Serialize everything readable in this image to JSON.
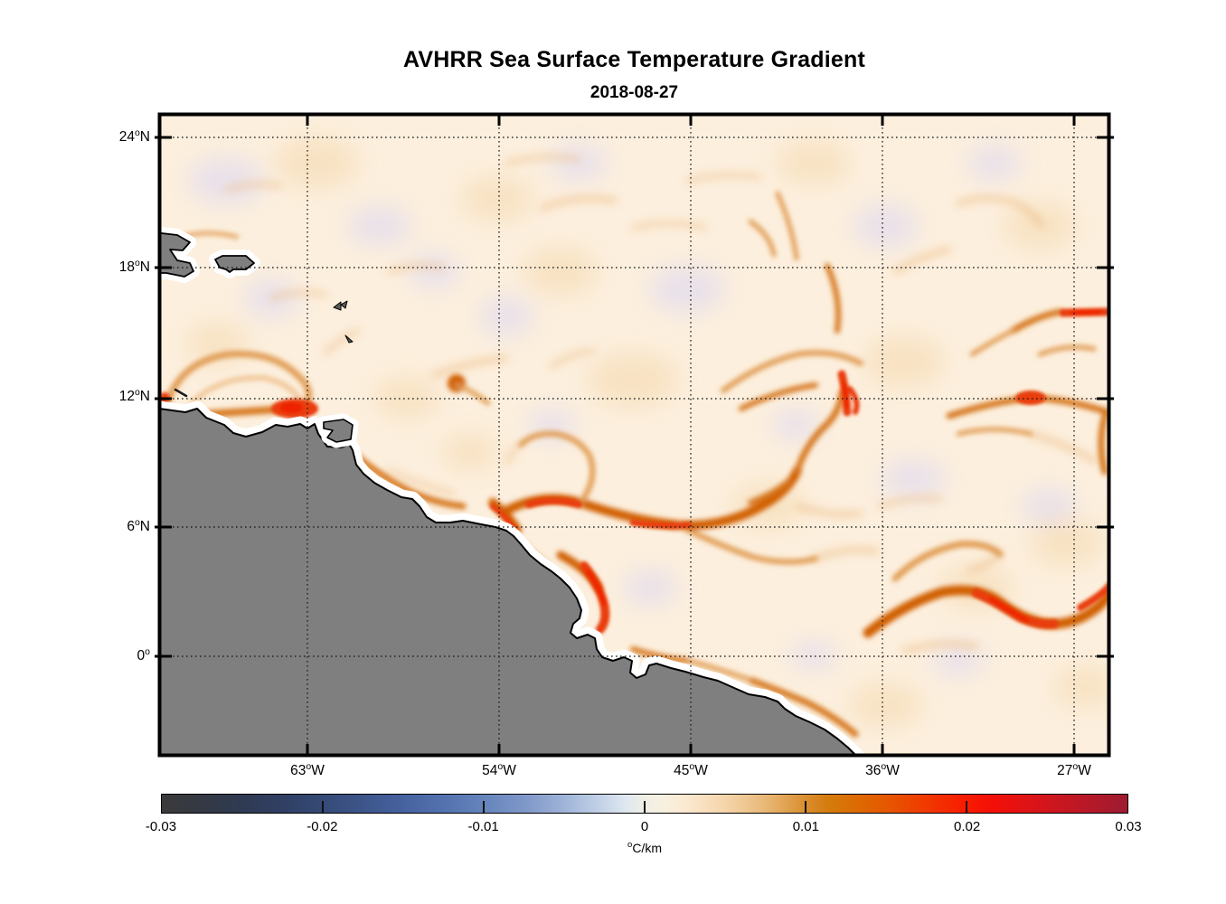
{
  "figure": {
    "title": "AVHRR Sea Surface Temperature Gradient",
    "subtitle": "2018-08-27"
  },
  "map": {
    "y_ticks": [
      {
        "num": "24",
        "deg": "o",
        "suffix": "N"
      },
      {
        "num": "18",
        "deg": "o",
        "suffix": "N"
      },
      {
        "num": "12",
        "deg": "o",
        "suffix": "N"
      },
      {
        "num": "6",
        "deg": "o",
        "suffix": "N"
      },
      {
        "num": "0",
        "deg": "o",
        "suffix": ""
      }
    ],
    "x_ticks": [
      {
        "num": "63",
        "deg": "o",
        "suffix": "W"
      },
      {
        "num": "54",
        "deg": "o",
        "suffix": "W"
      },
      {
        "num": "45",
        "deg": "o",
        "suffix": "W"
      },
      {
        "num": "36",
        "deg": "o",
        "suffix": "W"
      },
      {
        "num": "27",
        "deg": "o",
        "suffix": "W"
      }
    ],
    "colors": {
      "land": "#7f7f7f",
      "coastline": "#000000",
      "no_data_halo": "#ffffff",
      "ocean_background": "#fcefdd"
    }
  },
  "colorbar": {
    "tick_labels": [
      "-0.03",
      "-0.02",
      "-0.01",
      "0",
      "0.01",
      "0.02",
      "0.03"
    ],
    "unit_sup": "o",
    "unit": "C/km",
    "gradient_stops": [
      [
        0.0,
        "#3b3a3b"
      ],
      [
        0.04,
        "#343943"
      ],
      [
        0.08,
        "#2f3a52"
      ],
      [
        0.125,
        "#303f63"
      ],
      [
        0.167,
        "#354a76"
      ],
      [
        0.21,
        "#3d568b"
      ],
      [
        0.25,
        "#46629f"
      ],
      [
        0.292,
        "#5472ae"
      ],
      [
        0.333,
        "#6584bc"
      ],
      [
        0.375,
        "#7e97c8"
      ],
      [
        0.417,
        "#9fb4d8"
      ],
      [
        0.458,
        "#c6d5e8"
      ],
      [
        0.48,
        "#dfe7f0"
      ],
      [
        0.5,
        "#f0efe6"
      ],
      [
        0.52,
        "#f8f0e0"
      ],
      [
        0.54,
        "#fbead2"
      ],
      [
        0.583,
        "#f5d5ab"
      ],
      [
        0.625,
        "#e9b877"
      ],
      [
        0.667,
        "#d98e2e"
      ],
      [
        0.69,
        "#d47c0d"
      ],
      [
        0.72,
        "#dd6a02"
      ],
      [
        0.75,
        "#e55800"
      ],
      [
        0.79,
        "#f03a00"
      ],
      [
        0.833,
        "#f81b00"
      ],
      [
        0.86,
        "#f30f07"
      ],
      [
        0.9,
        "#dc1418"
      ],
      [
        0.95,
        "#bd1825"
      ],
      [
        1.0,
        "#9c1b31"
      ]
    ]
  },
  "chart_data": {
    "type": "heatmap",
    "title": "AVHRR Sea Surface Temperature Gradient",
    "subtitle": "2018-08-27",
    "x_axis": {
      "tick_labels": [
        "63°W",
        "54°W",
        "45°W",
        "36°W",
        "27°W"
      ],
      "approx_range_lon": [
        "70°W",
        "25.5°W"
      ]
    },
    "y_axis": {
      "tick_labels": [
        "24°N",
        "18°N",
        "12°N",
        "6°N",
        "0°"
      ],
      "approx_range_lat": [
        "4.6°S",
        "25.1°N"
      ]
    },
    "grid": "dotted, at every labeled tick",
    "colorbar": {
      "label": "°C/km",
      "ticks": [
        -0.03,
        -0.02,
        -0.01,
        0,
        0.01,
        0.02,
        0.03
      ],
      "range": [
        -0.03,
        0.03
      ],
      "colormap": "diverging: dark gray → navy blue → light blue → white → cream → orange → red → dark red",
      "orientation": "horizontal, below map"
    },
    "land_regions": [
      "South America: Venezuela / Trinidad / Guyanas / northern Brazil coast filling lower-left",
      "Hispaniola (partial, at left edge near 18°N)",
      "Puerto Rico (island near 18°N, 65°W)",
      "Lesser Antilles specks near 15°N, 61°W",
      "Curaçao dash near 12.3°N, 69°W"
    ],
    "field_description": "SST gradient magnitude field; background near 0 to +0.005 °C/km (pale cream) with faint negative patches (pale lavender); narrow positive filaments in orange/red",
    "high_gradient_features": [
      {
        "feature": "coastal red maximum off Venezuela",
        "approx_lon": "64°W",
        "approx_lat": "12°N",
        "value_C_per_km": 0.025
      },
      {
        "feature": "eddy arc north of Venezuela",
        "approx_lon": "66-63°W",
        "approx_lat": "13-14.5°N",
        "value_C_per_km": 0.01
      },
      {
        "feature": "North Brazil Current retroflection band",
        "approx_lon": "54-44°W",
        "approx_lat": "5-8°N",
        "value_C_per_km": 0.015
      },
      {
        "feature": "red filament along Guiana/Amazon coast",
        "approx_lon": "50-48°W",
        "approx_lat": "1-4°N",
        "value_C_per_km": 0.02
      },
      {
        "feature": "S-shaped ring filament",
        "approx_lon": "34-27°W",
        "approx_lat": "2-4°N",
        "value_C_per_km": 0.018
      },
      {
        "feature": "red streak at eastern edge",
        "approx_lon": "29-27°W",
        "approx_lat": "16°N",
        "value_C_per_km": 0.02
      },
      {
        "feature": "filament tangle mid-east",
        "approx_lon": "40-33°W",
        "approx_lat": "11-15°N",
        "value_C_per_km": 0.012
      }
    ]
  }
}
